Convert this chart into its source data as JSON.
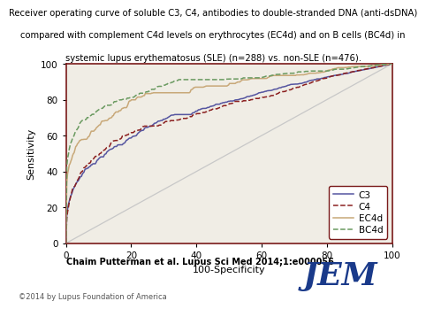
{
  "title_line1": "Receiver operating curve of soluble C3, C4, antibodies to double-stranded DNA (anti-dsDNA)",
  "title_line2": "compared with complement C4d levels on erythrocytes (EC4d) and on B cells (BC4d) in",
  "title_line3": "systemic lupus erythematosus (SLE) (n=288) vs. non-SLE (n=476).",
  "xlabel": "100-Specificity",
  "ylabel": "Sensitivity",
  "xlim": [
    0,
    100
  ],
  "ylim": [
    0,
    100
  ],
  "xticks": [
    0,
    20,
    40,
    60,
    80,
    100
  ],
  "yticks": [
    0,
    20,
    40,
    60,
    80,
    100
  ],
  "citation": "Chaim Putterman et al. Lupus Sci Med 2014;1:e000056",
  "copyright": "©2014 by Lupus Foundation of America",
  "jem_text": "JEM",
  "legend_labels": [
    "C3",
    "C4",
    "EC4d",
    "BC4d"
  ],
  "line_colors": [
    "#5555a0",
    "#8b2020",
    "#c8a878",
    "#6a9a60"
  ],
  "line_styles": [
    "-",
    "--",
    "-",
    "--"
  ],
  "background_color": "#f0ede5",
  "border_color": "#7a1a1a",
  "title_fontsize": 7.2,
  "axis_label_fontsize": 8,
  "tick_fontsize": 7.5,
  "legend_fontsize": 7.5,
  "citation_fontsize": 7,
  "copyright_fontsize": 6
}
